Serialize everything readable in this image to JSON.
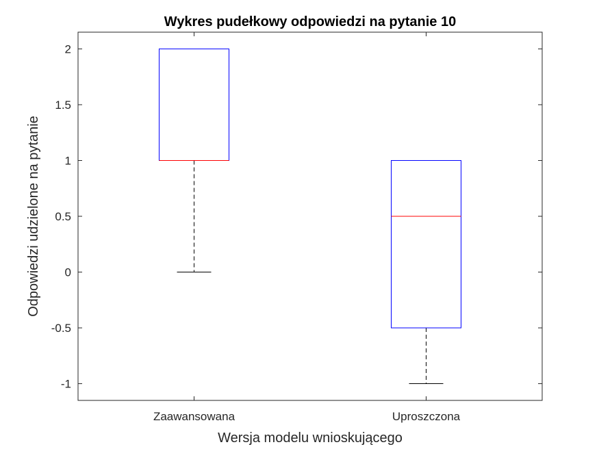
{
  "chart_data": {
    "type": "box",
    "title": "Wykres pudełkowy odpowiedzi na pytanie 10",
    "xlabel": "Wersja modelu wnioskującego",
    "ylabel": "Odpowiedzi udzielone na pytanie",
    "ylim": [
      -1.15,
      2.15
    ],
    "yticks": [
      2,
      1.5,
      1,
      0.5,
      0,
      -0.5,
      -1
    ],
    "ytick_labels": [
      "2",
      "1.5",
      "1",
      "0.5",
      "0",
      "-0.5",
      "-1"
    ],
    "categories": [
      "Zaawansowana",
      "Uproszczona"
    ],
    "boxes": [
      {
        "category": "Zaawansowana",
        "min": 0,
        "q1": 1,
        "median": 1,
        "q3": 2,
        "max": 2
      },
      {
        "category": "Uproszczona",
        "min": -1,
        "q1": -0.5,
        "median": 0.5,
        "q3": 1,
        "max": 1
      }
    ],
    "grid": false,
    "colors": {
      "box": "#0000ff",
      "median": "#ff0000",
      "whisker": "#000000",
      "axes": "#262626"
    }
  }
}
